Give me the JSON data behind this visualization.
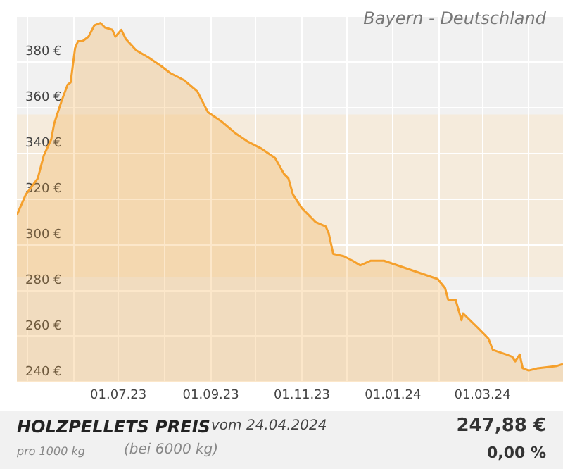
{
  "chart_data": {
    "type": "area",
    "title": "HOLZPELLETS PREIS",
    "subtitle": "vom 24.04.2024",
    "annotations": [
      "Bayern - Deutschland",
      "pro 1000 kg",
      "(bei 6000 kg)",
      "247,88 €",
      "0,00 %"
    ],
    "x": [
      "2023-04-24",
      "2023-04-30",
      "2023-05-08",
      "2023-05-12",
      "2023-05-17",
      "2023-05-19",
      "2023-05-24",
      "2023-05-28",
      "2023-05-30",
      "2023-06-02",
      "2023-06-04",
      "2023-06-07",
      "2023-06-11",
      "2023-06-15",
      "2023-06-19",
      "2023-06-22",
      "2023-06-27",
      "2023-06-29",
      "2023-07-03",
      "2023-07-06",
      "2023-07-13",
      "2023-07-21",
      "2023-07-30",
      "2023-08-05",
      "2023-08-14",
      "2023-08-23",
      "2023-08-30",
      "2023-09-08",
      "2023-09-17",
      "2023-09-26",
      "2023-10-05",
      "2023-10-14",
      "2023-10-20",
      "2023-10-23",
      "2023-10-26",
      "2023-11-01",
      "2023-11-10",
      "2023-11-17",
      "2023-11-19",
      "2023-11-22",
      "2023-11-29",
      "2023-12-05",
      "2023-12-10",
      "2023-12-17",
      "2023-12-26",
      "2024-01-04",
      "2024-01-13",
      "2024-01-22",
      "2024-01-31",
      "2024-02-05",
      "2024-02-07",
      "2024-02-12",
      "2024-02-16",
      "2024-02-17",
      "2024-02-28",
      "2024-03-05",
      "2024-03-08",
      "2024-03-17",
      "2024-03-21",
      "2024-03-23",
      "2024-03-26",
      "2024-03-28",
      "2024-04-01",
      "2024-04-07",
      "2024-04-20",
      "2024-04-24"
    ],
    "series": [
      {
        "color": "#f5a02c",
        "values": [
          313,
          322,
          329,
          339,
          346,
          353,
          363,
          370,
          371,
          386,
          389,
          389,
          391,
          396,
          397,
          395,
          394,
          391,
          394,
          390,
          385,
          382,
          378,
          375,
          372,
          367,
          358,
          354,
          349,
          345,
          342,
          338,
          331,
          329,
          322,
          316,
          310,
          308,
          305,
          296,
          295,
          293,
          291,
          293,
          293,
          291,
          289,
          287,
          285,
          281,
          276,
          276,
          267,
          270,
          263,
          259,
          254,
          252,
          251,
          249,
          252,
          246,
          245,
          246,
          247,
          247.88
        ]
      }
    ],
    "xlim": [
      "2023-04-24",
      "2024-04-24"
    ],
    "xticks": [
      {
        "value": "2023-05-01",
        "label": null
      },
      {
        "value": "2023-06-01",
        "label": null
      },
      {
        "value": "2023-07-01",
        "label": "01.07.23"
      },
      {
        "value": "2023-08-01",
        "label": null
      },
      {
        "value": "2023-09-01",
        "label": "01.09.23"
      },
      {
        "value": "2023-10-01",
        "label": null
      },
      {
        "value": "2023-11-01",
        "label": "01.11.23"
      },
      {
        "value": "2023-12-01",
        "label": null
      },
      {
        "value": "2024-01-01",
        "label": "01.01.24"
      },
      {
        "value": "2024-02-01",
        "label": null
      },
      {
        "value": "2024-03-01",
        "label": "01.03.24"
      },
      {
        "value": "2024-04-01",
        "label": null
      }
    ],
    "ylim": [
      240,
      400
    ],
    "yticks": [
      {
        "value": 240,
        "label": "240 €"
      },
      {
        "value": 260,
        "label": "260 €"
      },
      {
        "value": 280,
        "label": "280 €"
      },
      {
        "value": 300,
        "label": "300 €"
      },
      {
        "value": 320,
        "label": "320 €"
      },
      {
        "value": 340,
        "label": "340 €"
      },
      {
        "value": 360,
        "label": "360 €"
      },
      {
        "value": 380,
        "label": "380 €"
      },
      {
        "value": 400,
        "label": null
      }
    ],
    "bands": [
      {
        "axis": "y",
        "from": 286,
        "to": 357,
        "color": "#f5ebdc"
      }
    ],
    "grid": true,
    "legend": false,
    "marker": "none",
    "line_style": "solid"
  }
}
